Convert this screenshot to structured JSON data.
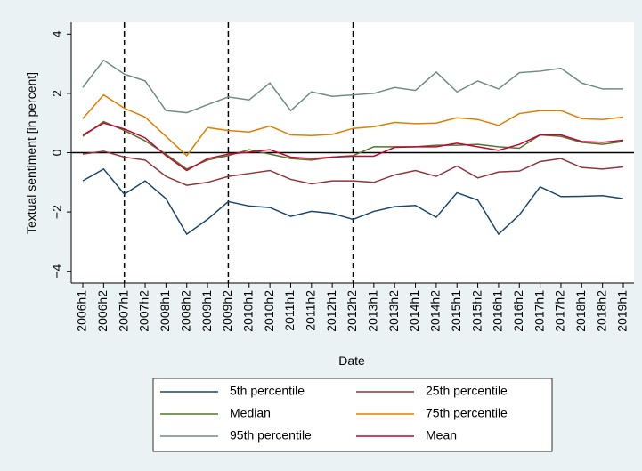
{
  "chart_data": {
    "type": "line",
    "x_label": "Date",
    "y_label": "Textual sentiment [in percent]",
    "categories": [
      "2006h1",
      "2006h2",
      "2007h1",
      "2007h2",
      "2008h1",
      "2008h2",
      "2009h1",
      "2009h2",
      "2010h1",
      "2010h2",
      "2011h1",
      "2011h2",
      "2012h1",
      "2012h2",
      "2013h1",
      "2013h2",
      "2014h1",
      "2014h2",
      "2015h1",
      "2015h2",
      "2016h1",
      "2016h2",
      "2017h1",
      "2017h2",
      "2018h1",
      "2018h2",
      "2019h1"
    ],
    "series": [
      {
        "name": "5th percentile",
        "color": "#1a476f",
        "values": [
          -0.95,
          -0.55,
          -1.4,
          -0.95,
          -1.55,
          -2.75,
          -2.25,
          -1.65,
          -1.8,
          -1.85,
          -2.15,
          -1.98,
          -2.05,
          -2.25,
          -1.98,
          -1.82,
          -1.78,
          -2.18,
          -1.35,
          -1.6,
          -2.75,
          -2.1,
          -1.15,
          -1.48,
          -1.47,
          -1.45,
          -1.55
        ]
      },
      {
        "name": "25th percentile",
        "color": "#90353b",
        "values": [
          -0.05,
          0.05,
          -0.15,
          -0.25,
          -0.8,
          -1.1,
          -1.0,
          -0.8,
          -0.7,
          -0.6,
          -0.9,
          -1.05,
          -0.95,
          -0.95,
          -1.0,
          -0.75,
          -0.6,
          -0.8,
          -0.45,
          -0.85,
          -0.65,
          -0.62,
          -0.3,
          -0.2,
          -0.5,
          -0.55,
          -0.48
        ]
      },
      {
        "name": "Median",
        "color": "#55752f",
        "values": [
          0.55,
          1.05,
          0.75,
          0.4,
          -0.05,
          -0.55,
          -0.25,
          -0.1,
          0.1,
          -0.05,
          -0.2,
          -0.25,
          -0.15,
          -0.1,
          0.2,
          0.2,
          0.2,
          0.25,
          0.25,
          0.28,
          0.2,
          0.15,
          0.6,
          0.55,
          0.35,
          0.28,
          0.38
        ]
      },
      {
        "name": "75th percentile",
        "color": "#e37e00",
        "values": [
          1.15,
          1.95,
          1.5,
          1.2,
          0.55,
          -0.1,
          0.85,
          0.75,
          0.7,
          0.9,
          0.6,
          0.58,
          0.62,
          0.82,
          0.88,
          1.02,
          0.98,
          1.0,
          1.18,
          1.12,
          0.92,
          1.32,
          1.42,
          1.42,
          1.15,
          1.12,
          1.2
        ]
      },
      {
        "name": "95th percentile",
        "color": "#6e8e84",
        "values": [
          2.2,
          3.12,
          2.65,
          2.42,
          1.42,
          1.35,
          1.62,
          1.88,
          1.78,
          2.35,
          1.42,
          2.05,
          1.9,
          1.95,
          2.0,
          2.2,
          2.1,
          2.72,
          2.05,
          2.42,
          2.15,
          2.7,
          2.75,
          2.85,
          2.35,
          2.15,
          2.15
        ]
      },
      {
        "name": "Mean",
        "color": "#c10534",
        "values": [
          0.6,
          1.0,
          0.8,
          0.5,
          -0.1,
          -0.6,
          -0.2,
          -0.05,
          0.02,
          0.1,
          -0.15,
          -0.2,
          -0.15,
          -0.12,
          -0.12,
          0.18,
          0.2,
          0.2,
          0.32,
          0.2,
          0.08,
          0.28,
          0.6,
          0.6,
          0.38,
          0.35,
          0.42
        ]
      }
    ],
    "ylim": [
      -4.4,
      4.4
    ],
    "yticks": [
      {
        "value": -4,
        "label": "−4"
      },
      {
        "value": -2,
        "label": "−2"
      },
      0,
      2,
      4
    ],
    "vlines": [
      "2007h1",
      "2009h2",
      "2012h2"
    ],
    "hline": 0,
    "legend": "bottom"
  }
}
